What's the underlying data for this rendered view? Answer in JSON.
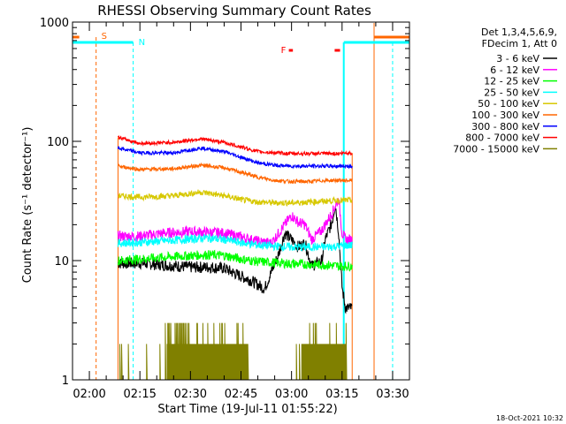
{
  "chart_data": {
    "type": "line",
    "title": "RHESSI Observing Summary Count Rates",
    "xlabel": "Start Time (19-Jul-11 01:55:22)",
    "ylabel": "Count Rate (s⁻¹ detector⁻¹)",
    "yscale": "log",
    "ylim": [
      1,
      1000
    ],
    "xlim_minutes": [
      115,
      215
    ],
    "x_ticks": [
      {
        "label": "02:00",
        "minutes": 120
      },
      {
        "label": "02:15",
        "minutes": 135
      },
      {
        "label": "02:30",
        "minutes": 150
      },
      {
        "label": "02:45",
        "minutes": 165
      },
      {
        "label": "03:00",
        "minutes": 180
      },
      {
        "label": "03:15",
        "minutes": 195
      },
      {
        "label": "03:30",
        "minutes": 210
      }
    ],
    "y_ticks": [
      {
        "label": "1",
        "value": 1
      },
      {
        "label": "10",
        "value": 10
      },
      {
        "label": "100",
        "value": 100
      },
      {
        "label": "1000",
        "value": 1000
      }
    ],
    "legend_header": [
      "Det 1,3,4,5,6,9,",
      "FDecim 1, Att 0"
    ],
    "legend_position": "right",
    "data_window_minutes": [
      128.5,
      198
    ],
    "series": [
      {
        "name": "3 - 6 keV",
        "color": "#000000",
        "x": [
          128.5,
          135,
          142,
          150,
          156,
          160,
          164,
          168,
          172,
          176,
          178,
          180,
          182,
          184,
          186,
          189,
          190,
          192,
          193,
          194,
          195,
          196,
          198
        ],
        "y": [
          9.5,
          9.5,
          9.2,
          8.8,
          8.8,
          8.6,
          7.6,
          6.8,
          5.8,
          11,
          17,
          15,
          13,
          14,
          9,
          10,
          15,
          21,
          30,
          17,
          6,
          4,
          4
        ]
      },
      {
        "name": "6 - 12 keV",
        "color": "#ff00ff",
        "x": [
          128.5,
          135,
          142,
          150,
          160,
          166,
          170,
          174,
          178,
          180,
          182,
          184,
          186,
          189,
          192,
          194,
          195,
          196,
          198
        ],
        "y": [
          16,
          16,
          17,
          17.5,
          17,
          15.5,
          14.5,
          14,
          20,
          24,
          21,
          20,
          15,
          18,
          25,
          33,
          17,
          15,
          15
        ]
      },
      {
        "name": "12 - 25 keV",
        "color": "#00ff00",
        "x": [
          128.5,
          135,
          145,
          155,
          160,
          166,
          170,
          175,
          180,
          185,
          190,
          194,
          196,
          198
        ],
        "y": [
          10,
          10.3,
          10.8,
          11.2,
          11,
          10.2,
          9.8,
          9.6,
          9.4,
          9.3,
          9.2,
          9,
          9,
          9
        ]
      },
      {
        "name": "25 - 50 keV",
        "color": "#00ffff",
        "x": [
          128.5,
          135,
          145,
          155,
          160,
          166,
          170,
          175,
          180,
          185,
          190,
          194,
          196,
          198
        ],
        "y": [
          14,
          14.2,
          14.8,
          15.5,
          15,
          14,
          13.5,
          13.2,
          13,
          13,
          13,
          13.2,
          13.4,
          13.4
        ]
      },
      {
        "name": "50 - 100 keV",
        "color": "#d7c800",
        "x": [
          128.5,
          135,
          145,
          153,
          160,
          166,
          170,
          175,
          180,
          185,
          190,
          194,
          196,
          198
        ],
        "y": [
          35,
          34,
          35,
          37.5,
          35,
          32,
          31,
          30.5,
          30.5,
          31,
          31.5,
          32,
          32,
          32
        ]
      },
      {
        "name": "100 - 300 keV",
        "color": "#ff6600",
        "x": [
          128.5,
          135,
          145,
          153,
          160,
          166,
          170,
          175,
          180,
          185,
          190,
          194,
          196,
          198
        ],
        "y": [
          62,
          58,
          59,
          63,
          60,
          54,
          50,
          47,
          46,
          46,
          47,
          47,
          47,
          47
        ]
      },
      {
        "name": "300 - 800 keV",
        "color": "#0000ff",
        "x": [
          128.5,
          135,
          145,
          153,
          160,
          166,
          170,
          175,
          180,
          185,
          190,
          194,
          196,
          198
        ],
        "y": [
          88,
          80,
          80,
          88,
          82,
          72,
          66,
          63,
          62,
          62,
          62,
          62,
          62,
          62
        ]
      },
      {
        "name": "800 - 7000 keV",
        "color": "#ff0000",
        "x": [
          128.5,
          135,
          145,
          153,
          160,
          166,
          170,
          175,
          180,
          185,
          190,
          194,
          196,
          198
        ],
        "y": [
          108,
          96,
          98,
          105,
          98,
          88,
          82,
          80,
          79,
          79,
          79,
          79,
          80,
          80
        ]
      },
      {
        "name": "7000 - 15000 keV",
        "color": "#808000",
        "x": [
          128.5,
          140,
          145,
          150,
          155,
          160,
          165,
          170,
          175,
          180,
          185,
          190,
          195,
          198
        ],
        "y": [
          1,
          1,
          2,
          2,
          2,
          2,
          2,
          1,
          1,
          1,
          2,
          2,
          2,
          1
        ]
      }
    ],
    "markers": [
      {
        "label": "S",
        "color": "#ff6600",
        "minutes": 122
      },
      {
        "label": "N",
        "color": "#00ffff",
        "minutes": 133
      },
      {
        "label": "F",
        "color": "#ff0000",
        "minutes": 180
      }
    ]
  },
  "footer_date": "18-Oct-2021 10:32"
}
